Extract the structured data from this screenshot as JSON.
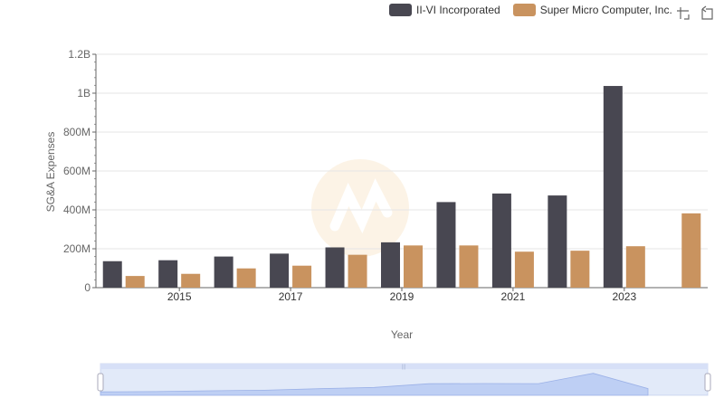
{
  "chart_data": {
    "type": "bar",
    "title": "",
    "xlabel": "Year",
    "ylabel": "SG&A Expenses",
    "ylim": [
      0,
      1200000000
    ],
    "yticks": [
      0,
      200000000,
      400000000,
      600000000,
      800000000,
      1000000000,
      1200000000
    ],
    "ytick_labels": [
      "0",
      "200M",
      "400M",
      "600M",
      "800M",
      "1B",
      "1.2B"
    ],
    "categories": [
      "2014",
      "2015",
      "2016",
      "2017",
      "2018",
      "2019",
      "2020",
      "2021",
      "2022",
      "2023",
      "2024"
    ],
    "xtick_labels": [
      "2015",
      "2017",
      "2019",
      "2021",
      "2023"
    ],
    "series": [
      {
        "name": "II-VI Incorporated",
        "color": "#484751",
        "values": [
          136000000,
          141000000,
          160000000,
          175000000,
          207000000,
          233000000,
          440000000,
          484000000,
          474000000,
          1037000000,
          null
        ]
      },
      {
        "name": "Super Micro Computer, Inc.",
        "color": "#c9935f",
        "values": [
          60000000,
          71000000,
          99000000,
          113000000,
          169000000,
          217000000,
          217000000,
          185000000,
          190000000,
          213000000,
          382000000
        ]
      }
    ],
    "legend_position": "top-right",
    "grid": true
  },
  "toolbar": {
    "zoom_icon": "zoom-icon",
    "restore_icon": "restore-icon"
  }
}
